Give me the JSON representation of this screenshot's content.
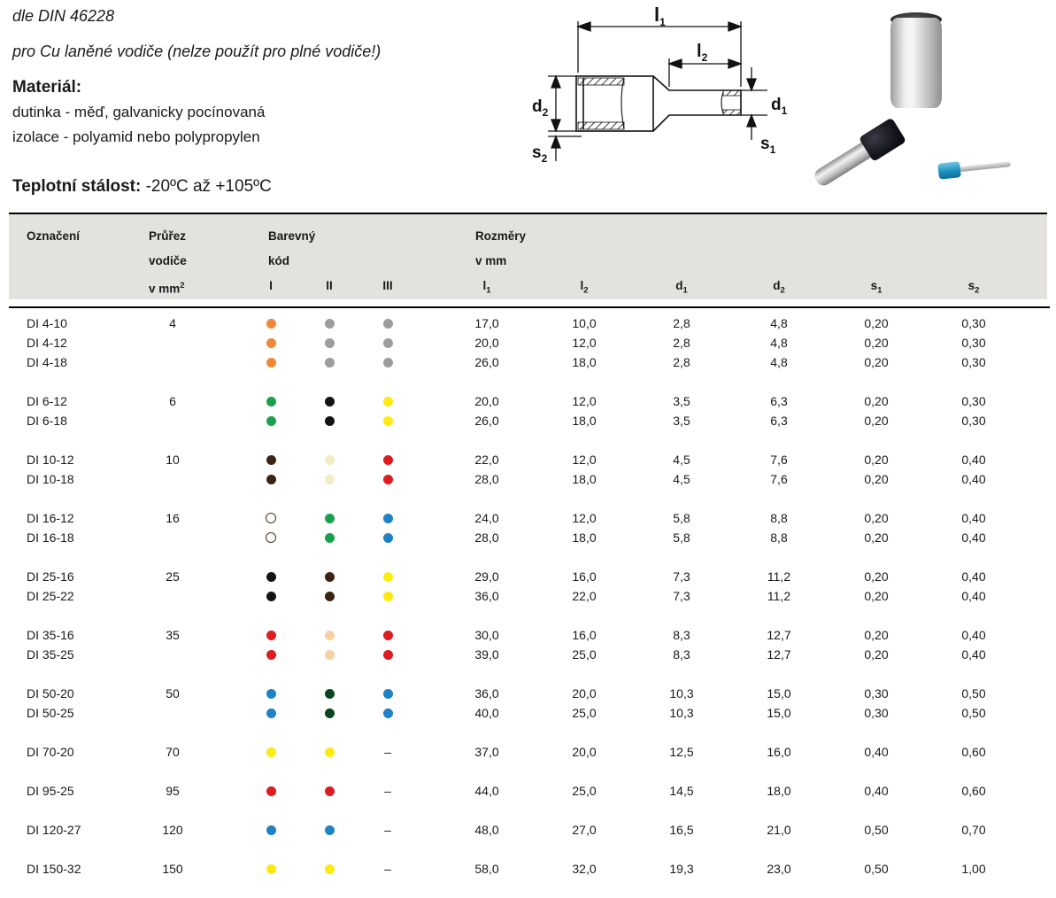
{
  "header": {
    "standard": "dle DIN 46228",
    "usage": "pro Cu laněné vodiče (nelze použít pro plné vodiče!)",
    "material_label": "Materiál:",
    "material_line1": "dutinka - měď, galvanicky pocínovaná",
    "material_line2": "izolace - polyamid nebo polypropylen",
    "temp_label": "Teplotní stálost:",
    "temp_value": " -20ºC až +105ºC"
  },
  "diagram": {
    "dims": [
      {
        "base": "l",
        "sub": "1"
      },
      {
        "base": "l",
        "sub": "2"
      },
      {
        "base": "d",
        "sub": "1"
      },
      {
        "base": "d",
        "sub": "2"
      },
      {
        "base": "s",
        "sub": "1"
      },
      {
        "base": "s",
        "sub": "2"
      }
    ]
  },
  "photo": {
    "items": [
      "yellow-ferrule-large",
      "black-ferrule-medium",
      "blue-ferrule-small"
    ]
  },
  "table": {
    "head": {
      "oznaceni": "Označení",
      "prurez_line1": "Průřez",
      "prurez_line2": "vodiče",
      "prurez_line3_base": "v mm",
      "prurez_line3_sup": "2",
      "color_title_line1": "Barevný",
      "color_title_line2": "kód",
      "color_cols": [
        "I",
        "II",
        "III"
      ],
      "rozmery_line1": "Rozměry",
      "rozmery_line2": "v mm",
      "dims": [
        {
          "base": "l",
          "sub": "1"
        },
        {
          "base": "l",
          "sub": "2"
        },
        {
          "base": "d",
          "sub": "1"
        },
        {
          "base": "d",
          "sub": "2"
        },
        {
          "base": "s",
          "sub": "1"
        },
        {
          "base": "s",
          "sub": "2"
        }
      ]
    },
    "color_palette": {
      "orange": "#F0883B",
      "gray": "#9D9D9C",
      "green": "#18A14D",
      "black": "#141414",
      "yellow": "#FCEA10",
      "brown": "#3B2314",
      "ivory": "#F1EDC6",
      "red": "#DD1B21",
      "white": "#FFFFFF",
      "blue": "#1F82C4",
      "darkgreen": "#0A4521",
      "beige": "#F6D0A5"
    },
    "dash": "–",
    "groups": [
      {
        "rows": [
          {
            "label": "DI 4-10",
            "prurez": "4",
            "dots": [
              "orange",
              "gray",
              "gray"
            ],
            "values": [
              "17,0",
              "10,0",
              "2,8",
              "4,8",
              "0,20",
              "0,30"
            ]
          },
          {
            "label": "DI 4-12",
            "prurez": "",
            "dots": [
              "orange",
              "gray",
              "gray"
            ],
            "values": [
              "20,0",
              "12,0",
              "2,8",
              "4,8",
              "0,20",
              "0,30"
            ]
          },
          {
            "label": "DI 4-18",
            "prurez": "",
            "dots": [
              "orange",
              "gray",
              "gray"
            ],
            "values": [
              "26,0",
              "18,0",
              "2,8",
              "4,8",
              "0,20",
              "0,30"
            ]
          }
        ]
      },
      {
        "rows": [
          {
            "label": "DI 6-12",
            "prurez": "6",
            "dots": [
              "green",
              "black",
              "yellow"
            ],
            "values": [
              "20,0",
              "12,0",
              "3,5",
              "6,3",
              "0,20",
              "0,30"
            ]
          },
          {
            "label": "DI 6-18",
            "prurez": "",
            "dots": [
              "green",
              "black",
              "yellow"
            ],
            "values": [
              "26,0",
              "18,0",
              "3,5",
              "6,3",
              "0,20",
              "0,30"
            ]
          }
        ]
      },
      {
        "rows": [
          {
            "label": "DI 10-12",
            "prurez": "10",
            "dots": [
              "brown",
              "ivory",
              "red"
            ],
            "values": [
              "22,0",
              "12,0",
              "4,5",
              "7,6",
              "0,20",
              "0,40"
            ]
          },
          {
            "label": "DI 10-18",
            "prurez": "",
            "dots": [
              "brown",
              "ivory",
              "red"
            ],
            "values": [
              "28,0",
              "18,0",
              "4,5",
              "7,6",
              "0,20",
              "0,40"
            ]
          }
        ]
      },
      {
        "rows": [
          {
            "label": "DI 16-12",
            "prurez": "16",
            "dots": [
              "white",
              "green",
              "blue"
            ],
            "values": [
              "24,0",
              "12,0",
              "5,8",
              "8,8",
              "0,20",
              "0,40"
            ]
          },
          {
            "label": "DI 16-18",
            "prurez": "",
            "dots": [
              "white",
              "green",
              "blue"
            ],
            "values": [
              "28,0",
              "18,0",
              "5,8",
              "8,8",
              "0,20",
              "0,40"
            ]
          }
        ]
      },
      {
        "rows": [
          {
            "label": "DI 25-16",
            "prurez": "25",
            "dots": [
              "black",
              "brown",
              "yellow"
            ],
            "values": [
              "29,0",
              "16,0",
              "7,3",
              "11,2",
              "0,20",
              "0,40"
            ]
          },
          {
            "label": "DI 25-22",
            "prurez": "",
            "dots": [
              "black",
              "brown",
              "yellow"
            ],
            "values": [
              "36,0",
              "22,0",
              "7,3",
              "11,2",
              "0,20",
              "0,40"
            ]
          }
        ]
      },
      {
        "rows": [
          {
            "label": "DI 35-16",
            "prurez": "35",
            "dots": [
              "red",
              "beige",
              "red"
            ],
            "values": [
              "30,0",
              "16,0",
              "8,3",
              "12,7",
              "0,20",
              "0,40"
            ]
          },
          {
            "label": "DI 35-25",
            "prurez": "",
            "dots": [
              "red",
              "beige",
              "red"
            ],
            "values": [
              "39,0",
              "25,0",
              "8,3",
              "12,7",
              "0,20",
              "0,40"
            ]
          }
        ]
      },
      {
        "rows": [
          {
            "label": "DI 50-20",
            "prurez": "50",
            "dots": [
              "blue",
              "darkgreen",
              "blue"
            ],
            "values": [
              "36,0",
              "20,0",
              "10,3",
              "15,0",
              "0,30",
              "0,50"
            ]
          },
          {
            "label": "DI 50-25",
            "prurez": "",
            "dots": [
              "blue",
              "darkgreen",
              "blue"
            ],
            "values": [
              "40,0",
              "25,0",
              "10,3",
              "15,0",
              "0,30",
              "0,50"
            ]
          }
        ]
      },
      {
        "rows": [
          {
            "label": "DI 70-20",
            "prurez": "70",
            "dots": [
              "yellow",
              "yellow",
              "dash"
            ],
            "values": [
              "37,0",
              "20,0",
              "12,5",
              "16,0",
              "0,40",
              "0,60"
            ]
          }
        ]
      },
      {
        "rows": [
          {
            "label": "DI 95-25",
            "prurez": "95",
            "dots": [
              "red",
              "red",
              "dash"
            ],
            "values": [
              "44,0",
              "25,0",
              "14,5",
              "18,0",
              "0,40",
              "0,60"
            ]
          }
        ]
      },
      {
        "rows": [
          {
            "label": "DI 120-27",
            "prurez": "120",
            "dots": [
              "blue",
              "blue",
              "dash"
            ],
            "values": [
              "48,0",
              "27,0",
              "16,5",
              "21,0",
              "0,50",
              "0,70"
            ]
          }
        ]
      },
      {
        "rows": [
          {
            "label": "DI 150-32",
            "prurez": "150",
            "dots": [
              "yellow",
              "yellow",
              "dash"
            ],
            "values": [
              "58,0",
              "32,0",
              "19,3",
              "23,0",
              "0,50",
              "1,00"
            ]
          }
        ]
      }
    ]
  }
}
